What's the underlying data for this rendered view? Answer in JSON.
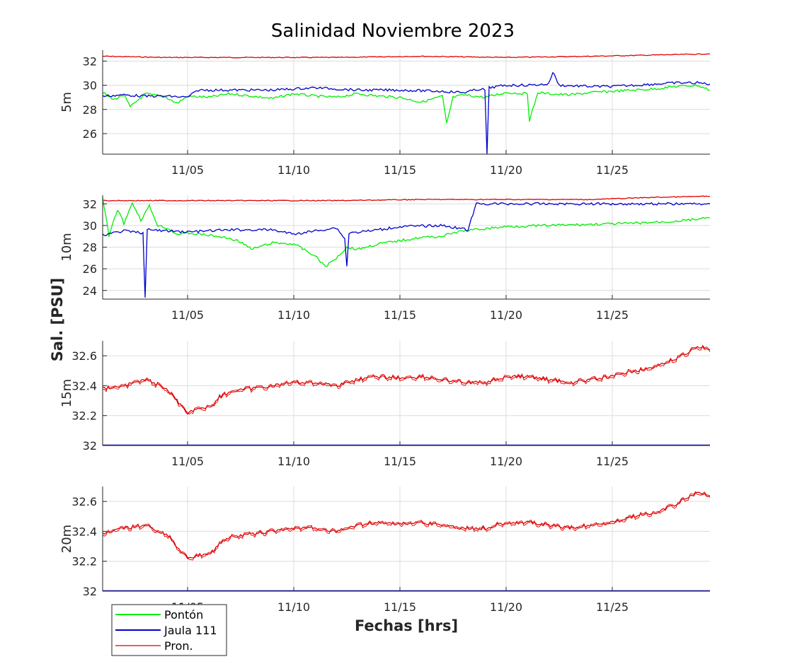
{
  "title": "Salinidad Noviembre 2023",
  "xlabel": "Fechas [hrs]",
  "ylabel": "Sal. [PSU]",
  "legend": {
    "placement": "bottom-left",
    "items": [
      {
        "label": "Pontón",
        "color": "#00ee00"
      },
      {
        "label": "Jaula 111",
        "color": "#0000cc"
      },
      {
        "label": "Pron.",
        "color": "#dd0000"
      }
    ]
  },
  "x_axis": {
    "range": [
      1.0,
      29.6
    ],
    "tick_values": [
      5,
      10,
      15,
      20,
      25
    ],
    "tick_labels": [
      "11/05",
      "11/10",
      "11/15",
      "11/20",
      "11/25"
    ]
  },
  "chart_data": [
    {
      "type": "line",
      "panel_label": "5m",
      "ylim": [
        24.3,
        32.9
      ],
      "y_ticks": [
        26,
        28,
        30,
        32
      ],
      "grid": true,
      "series": [
        {
          "name": "Pron.",
          "color": "#dd0000",
          "points": [
            [
              1,
              32.4
            ],
            [
              4,
              32.3
            ],
            [
              8,
              32.3
            ],
            [
              12,
              32.3
            ],
            [
              16,
              32.4
            ],
            [
              20,
              32.3
            ],
            [
              24,
              32.4
            ],
            [
              27,
              32.5
            ],
            [
              29.6,
              32.6
            ]
          ]
        },
        {
          "name": "Pontón",
          "color": "#00ee00",
          "points": [
            [
              1,
              29.4
            ],
            [
              1.5,
              28.8
            ],
            [
              2,
              29.2
            ],
            [
              2.3,
              28.2
            ],
            [
              3,
              29.3
            ],
            [
              4,
              29.0
            ],
            [
              4.5,
              28.5
            ],
            [
              5,
              29.1
            ],
            [
              6,
              29.0
            ],
            [
              7,
              29.3
            ],
            [
              8,
              29.1
            ],
            [
              9,
              28.9
            ],
            [
              10,
              29.3
            ],
            [
              11,
              29.1
            ],
            [
              12,
              29.0
            ],
            [
              13,
              29.3
            ],
            [
              14,
              29.1
            ],
            [
              15,
              29.0
            ],
            [
              16,
              28.6
            ],
            [
              17,
              29.1
            ],
            [
              17.2,
              26.8
            ],
            [
              17.5,
              29.0
            ],
            [
              18,
              29.2
            ],
            [
              19,
              29.0
            ],
            [
              20,
              29.4
            ],
            [
              21,
              29.3
            ],
            [
              21.1,
              27.1
            ],
            [
              21.5,
              29.4
            ],
            [
              22,
              29.3
            ],
            [
              23,
              29.2
            ],
            [
              24,
              29.4
            ],
            [
              25,
              29.5
            ],
            [
              26,
              29.6
            ],
            [
              27,
              29.7
            ],
            [
              28,
              29.9
            ],
            [
              29,
              30.0
            ],
            [
              29.6,
              29.6
            ]
          ]
        },
        {
          "name": "Jaula 111",
          "color": "#0000cc",
          "points": [
            [
              1,
              29.1
            ],
            [
              2,
              29.2
            ],
            [
              3,
              29.1
            ],
            [
              4,
              29.1
            ],
            [
              5,
              29.0
            ],
            [
              5.5,
              29.6
            ],
            [
              7,
              29.6
            ],
            [
              9,
              29.6
            ],
            [
              11,
              29.8
            ],
            [
              13,
              29.6
            ],
            [
              15,
              29.6
            ],
            [
              17,
              29.5
            ],
            [
              18,
              29.4
            ],
            [
              18.8,
              29.7
            ],
            [
              19,
              29.6
            ],
            [
              19.1,
              24.3
            ],
            [
              19.2,
              29.8
            ],
            [
              20,
              30.0
            ],
            [
              21,
              30.0
            ],
            [
              22,
              30.1
            ],
            [
              22.2,
              31.1
            ],
            [
              22.5,
              30.0
            ],
            [
              24,
              29.9
            ],
            [
              25,
              29.9
            ],
            [
              26,
              30.0
            ],
            [
              27,
              30.1
            ],
            [
              28,
              30.2
            ],
            [
              29,
              30.2
            ],
            [
              29.6,
              30.1
            ]
          ]
        }
      ]
    },
    {
      "type": "line",
      "panel_label": "10m",
      "ylim": [
        23.2,
        32.8
      ],
      "y_ticks": [
        24,
        26,
        28,
        30,
        32
      ],
      "grid": true,
      "series": [
        {
          "name": "Pron.",
          "color": "#dd0000",
          "points": [
            [
              1,
              32.3
            ],
            [
              4,
              32.3
            ],
            [
              8,
              32.3
            ],
            [
              12,
              32.3
            ],
            [
              16,
              32.4
            ],
            [
              20,
              32.4
            ],
            [
              24,
              32.4
            ],
            [
              27,
              32.6
            ],
            [
              29.6,
              32.7
            ]
          ]
        },
        {
          "name": "Pontón",
          "color": "#00ee00",
          "points": [
            [
              1,
              32.6
            ],
            [
              1.3,
              29.0
            ],
            [
              1.7,
              31.5
            ],
            [
              2,
              30.2
            ],
            [
              2.4,
              32.1
            ],
            [
              2.8,
              30.5
            ],
            [
              3.2,
              31.8
            ],
            [
              3.6,
              30.0
            ],
            [
              4,
              29.8
            ],
            [
              4.5,
              29.2
            ],
            [
              5,
              29.3
            ],
            [
              6,
              29.1
            ],
            [
              7,
              28.8
            ],
            [
              7.5,
              28.5
            ],
            [
              8,
              27.8
            ],
            [
              9,
              28.4
            ],
            [
              10,
              28.3
            ],
            [
              11,
              27.2
            ],
            [
              11.5,
              26.2
            ],
            [
              12,
              27.0
            ],
            [
              12.5,
              28.0
            ],
            [
              13,
              27.8
            ],
            [
              14,
              28.3
            ],
            [
              15,
              28.6
            ],
            [
              16,
              28.9
            ],
            [
              17,
              29.0
            ],
            [
              17.5,
              29.3
            ],
            [
              18,
              29.5
            ],
            [
              19,
              29.7
            ],
            [
              20,
              29.9
            ],
            [
              22,
              30.0
            ],
            [
              24,
              30.1
            ],
            [
              26,
              30.2
            ],
            [
              28,
              30.4
            ],
            [
              29.6,
              30.7
            ]
          ]
        },
        {
          "name": "Jaula 111",
          "color": "#0000cc",
          "points": [
            [
              1,
              29.1
            ],
            [
              2,
              29.5
            ],
            [
              2.9,
              29.3
            ],
            [
              3,
              23.3
            ],
            [
              3.1,
              29.6
            ],
            [
              5,
              29.4
            ],
            [
              7,
              29.6
            ],
            [
              9,
              29.6
            ],
            [
              10,
              29.2
            ],
            [
              11,
              29.5
            ],
            [
              12,
              29.8
            ],
            [
              12.4,
              28.8
            ],
            [
              12.5,
              26.2
            ],
            [
              12.6,
              29.3
            ],
            [
              14,
              29.6
            ],
            [
              15,
              29.9
            ],
            [
              17,
              30.0
            ],
            [
              18.2,
              29.6
            ],
            [
              18.6,
              32.0
            ],
            [
              29.6,
              32.0
            ]
          ]
        }
      ]
    },
    {
      "type": "line",
      "panel_label": "15m",
      "ylim": [
        32.0,
        32.7
      ],
      "y_ticks": [
        32,
        32.2,
        32.4,
        32.6
      ],
      "y_tick_labels": [
        "32",
        "32.2",
        "32.4",
        "32.6"
      ],
      "grid": true,
      "series": [
        {
          "name": "Pron.",
          "color": "#dd0000",
          "points": [
            [
              1,
              32.38
            ],
            [
              2,
              32.4
            ],
            [
              3,
              32.44
            ],
            [
              4,
              32.38
            ],
            [
              4.5,
              32.3
            ],
            [
              5,
              32.22
            ],
            [
              5.5,
              32.25
            ],
            [
              6,
              32.25
            ],
            [
              6.5,
              32.32
            ],
            [
              7,
              32.36
            ],
            [
              8,
              32.38
            ],
            [
              9,
              32.4
            ],
            [
              10,
              32.42
            ],
            [
              11,
              32.42
            ],
            [
              12,
              32.4
            ],
            [
              13,
              32.44
            ],
            [
              14,
              32.46
            ],
            [
              15,
              32.45
            ],
            [
              16,
              32.46
            ],
            [
              17,
              32.44
            ],
            [
              18,
              32.42
            ],
            [
              19,
              32.42
            ],
            [
              20,
              32.46
            ],
            [
              21,
              32.46
            ],
            [
              22,
              32.44
            ],
            [
              23,
              32.42
            ],
            [
              24,
              32.44
            ],
            [
              25,
              32.46
            ],
            [
              26,
              32.5
            ],
            [
              27,
              32.52
            ],
            [
              28,
              32.58
            ],
            [
              29,
              32.66
            ],
            [
              29.6,
              32.64
            ]
          ]
        },
        {
          "name": "Jaula 111",
          "color": "#0000cc",
          "points": [
            [
              1,
              32.0
            ],
            [
              29.6,
              32.0
            ]
          ]
        }
      ]
    },
    {
      "type": "line",
      "panel_label": "20m",
      "ylim": [
        32.0,
        32.7
      ],
      "y_ticks": [
        32,
        32.2,
        32.4,
        32.6
      ],
      "y_tick_labels": [
        "32",
        "32.2",
        "32.4",
        "32.6"
      ],
      "grid": true,
      "series": [
        {
          "name": "Pron.",
          "color": "#dd0000",
          "points": [
            [
              1,
              32.38
            ],
            [
              2,
              32.42
            ],
            [
              3,
              32.44
            ],
            [
              4,
              32.38
            ],
            [
              4.5,
              32.3
            ],
            [
              5,
              32.22
            ],
            [
              5.5,
              32.24
            ],
            [
              6,
              32.24
            ],
            [
              6.5,
              32.32
            ],
            [
              7,
              32.36
            ],
            [
              8,
              32.38
            ],
            [
              9,
              32.4
            ],
            [
              10,
              32.42
            ],
            [
              11,
              32.42
            ],
            [
              12,
              32.4
            ],
            [
              13,
              32.44
            ],
            [
              14,
              32.46
            ],
            [
              15,
              32.45
            ],
            [
              16,
              32.46
            ],
            [
              17,
              32.44
            ],
            [
              18,
              32.42
            ],
            [
              19,
              32.42
            ],
            [
              20,
              32.46
            ],
            [
              21,
              32.46
            ],
            [
              22,
              32.44
            ],
            [
              23,
              32.42
            ],
            [
              24,
              32.44
            ],
            [
              25,
              32.46
            ],
            [
              26,
              32.5
            ],
            [
              27,
              32.52
            ],
            [
              28,
              32.58
            ],
            [
              29,
              32.66
            ],
            [
              29.6,
              32.64
            ]
          ]
        },
        {
          "name": "Jaula 111",
          "color": "#0000cc",
          "points": [
            [
              1,
              32.0
            ],
            [
              29.6,
              32.0
            ]
          ]
        }
      ]
    }
  ]
}
